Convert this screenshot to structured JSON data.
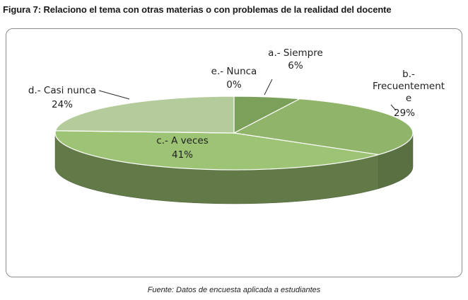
{
  "figure": {
    "title": "Figura 7:  Relaciono el tema con otras materias o con problemas de la realidad del docente",
    "source": "Fuente: Datos de encuesta aplicada a estudiantes"
  },
  "chart_data": {
    "type": "pie",
    "style": "3d-exploded-pie",
    "slices": [
      {
        "label": "a.- Siempre",
        "value": 6,
        "display": "6%",
        "color": "#7ba05a"
      },
      {
        "label": "b.- Frecuentemente",
        "label_lines": [
          "b.-",
          "Frecuentement",
          "e"
        ],
        "value": 29,
        "display": "29%",
        "color": "#8fb46a"
      },
      {
        "label": "c.- A veces",
        "value": 41,
        "display": "41%",
        "color": "#9dc474"
      },
      {
        "label": "d.- Casi nunca",
        "value": 24,
        "display": "24%",
        "color": "#b4cc9b"
      },
      {
        "label": "e.- Nunca",
        "value": 0,
        "display": "0%",
        "color": "#c8d9b3"
      }
    ]
  }
}
